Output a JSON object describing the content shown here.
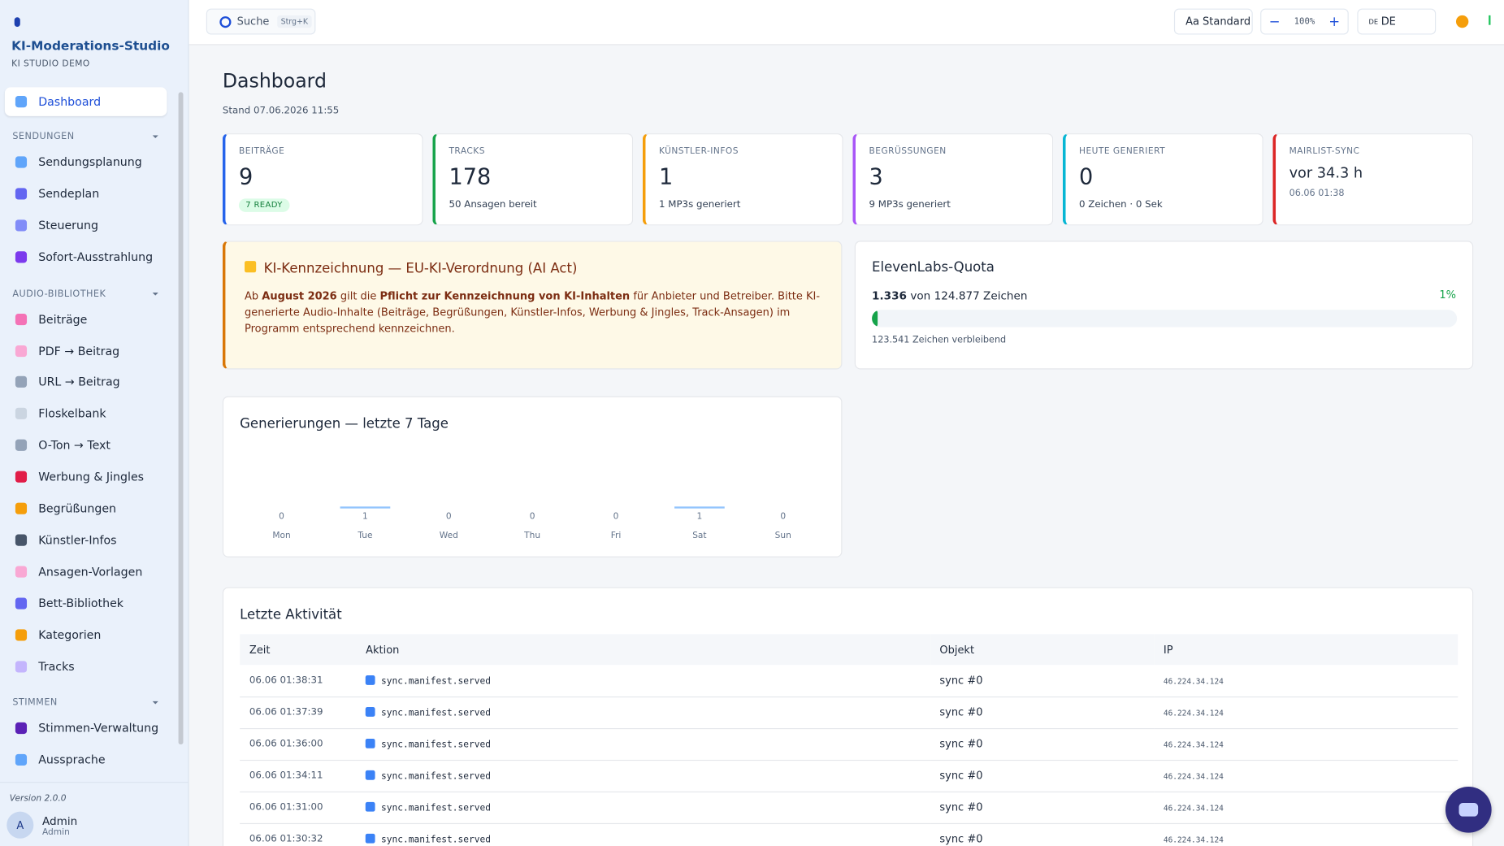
{
  "sidebar": {
    "app_title": "KI-Moderations-Studio",
    "app_subtitle": "KI STUDIO DEMO",
    "dashboard": "Dashboard",
    "sections": [
      {
        "title": "SENDUNGEN",
        "items": [
          "Sendungsplanung",
          "Sendeplan",
          "Steuerung",
          "Sofort-Ausstrahlung"
        ]
      },
      {
        "title": "AUDIO-BIBLIOTHEK",
        "items": [
          "Beiträge",
          "PDF → Beitrag",
          "URL → Beitrag",
          "Floskelbank",
          "O-Ton → Text",
          "Werbung & Jingles",
          "Begrüßungen",
          "Künstler-Infos",
          "Ansagen-Vorlagen",
          "Bett-Bibliothek",
          "Kategorien",
          "Tracks"
        ]
      },
      {
        "title": "STIMMEN",
        "items": [
          "Stimmen-Verwaltung",
          "Aussprache"
        ]
      }
    ],
    "version": "Version 2.0.0",
    "user": {
      "initial": "A",
      "name": "Admin",
      "role": "Admin"
    }
  },
  "topbar": {
    "search": "Suche",
    "shortcut": "Strg+K",
    "font_size": "Aa Standard",
    "zoom_out": "−",
    "zoom": "100%",
    "zoom_in": "+",
    "lang_code": "DE",
    "language": "DE"
  },
  "page": {
    "title": "Dashboard",
    "stand": "Stand 07.06.2026 11:55"
  },
  "stats": [
    {
      "label": "BEITRÄGE",
      "value": "9",
      "badge": "7 READY",
      "color": "#2563eb"
    },
    {
      "label": "TRACKS",
      "value": "178",
      "note": "50 Ansagen bereit",
      "color": "#16a34a"
    },
    {
      "label": "KÜNSTLER-INFOS",
      "value": "1",
      "note": "1 MP3s generiert",
      "color": "#f59e0b"
    },
    {
      "label": "BEGRÜSSUNGEN",
      "value": "3",
      "note": "9 MP3s generiert",
      "color": "#a855f7"
    },
    {
      "label": "HEUTE GENERIERT",
      "value": "0",
      "note": "0 Zeichen · 0 Sek",
      "color": "#06b6d4"
    },
    {
      "label": "MAIRLIST-SYNC",
      "value": "vor 34.3 h",
      "note": "06.06 01:38",
      "color": "#dc2626"
    }
  ],
  "notice": {
    "title": "KI-Kennzeichnung — EU-KI-Verordnung (AI Act)",
    "segments": [
      {
        "text": "Ab "
      },
      {
        "text": "August 2026",
        "bold": true
      },
      {
        "text": " gilt die "
      },
      {
        "text": "Pflicht zur Kennzeichnung von KI-Inhalten",
        "bold": true
      },
      {
        "text": " für Anbieter und Betreiber. Bitte KI-generierte Audio-Inhalte (Beiträge, Begrüßungen, Künstler-Infos, Werbung & Jingles, Track-Ansagen) im Programm entsprechend kennzeichnen."
      }
    ]
  },
  "quota": {
    "title": "ElevenLabs-Quota",
    "used": "1.336",
    "of": "von 124.877 Zeichen",
    "percent": "1%",
    "remaining": "123.541 Zeichen verbleibend"
  },
  "chart_data": {
    "type": "bar",
    "title": "Generierungen — letzte 7 Tage",
    "categories": [
      "Mon",
      "Tue",
      "Wed",
      "Thu",
      "Fri",
      "Sat",
      "Sun"
    ],
    "values": [
      0,
      1,
      0,
      0,
      0,
      1,
      0
    ],
    "color": "#93c5fd"
  },
  "activity": {
    "title": "Letzte Aktivität",
    "headers": [
      "Zeit",
      "Aktion",
      "Objekt",
      "IP"
    ],
    "rows": [
      [
        "06.06 01:38:31",
        "sync.manifest.served",
        "sync #0",
        "46.224.34.124"
      ],
      [
        "06.06 01:37:39",
        "sync.manifest.served",
        "sync #0",
        "46.224.34.124"
      ],
      [
        "06.06 01:36:00",
        "sync.manifest.served",
        "sync #0",
        "46.224.34.124"
      ],
      [
        "06.06 01:34:11",
        "sync.manifest.served",
        "sync #0",
        "46.224.34.124"
      ],
      [
        "06.06 01:31:00",
        "sync.manifest.served",
        "sync #0",
        "46.224.34.124"
      ],
      [
        "06.06 01:30:32",
        "sync.manifest.served",
        "sync #0",
        "46.224.34.124"
      ]
    ]
  }
}
